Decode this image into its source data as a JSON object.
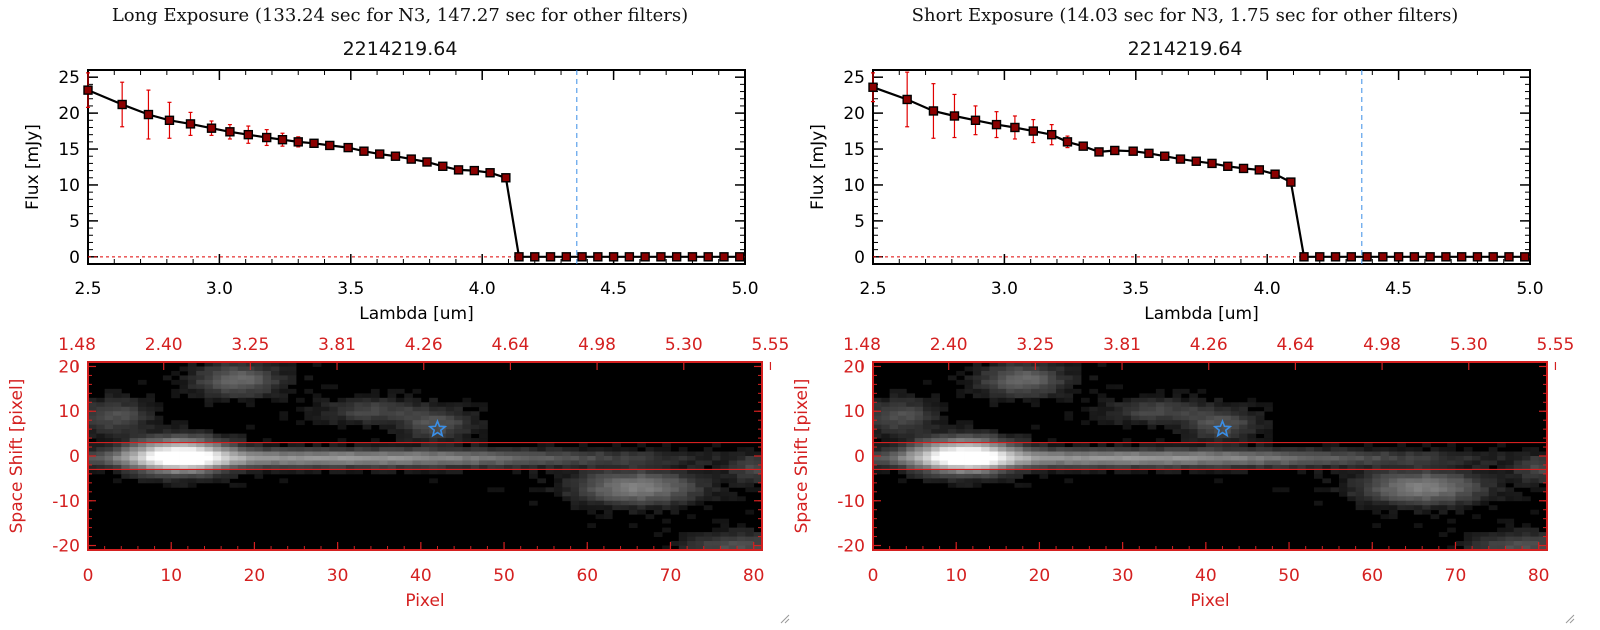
{
  "panels": [
    {
      "exposure_title": "Long Exposure (133.24 sec for N3, 147.27 sec for other filters)",
      "plot_title": "2214219.64"
    },
    {
      "exposure_title": "Short Exposure (14.03 sec for N3, 1.75 sec for other filters)",
      "plot_title": "2214219.64"
    }
  ],
  "colors": {
    "errorbar": "#e00000",
    "marker": "#8b0000",
    "line": "#000000",
    "vline": "#3a8ee6",
    "image_axes": "#d42020",
    "star": "#3a8ee6"
  },
  "chart_data": [
    {
      "type": "line",
      "panel": "long",
      "title": "2214219.64",
      "xlabel": "Lambda [um]",
      "ylabel": "Flux [mJy]",
      "xlim": [
        2.5,
        5.0
      ],
      "ylim": [
        -1,
        26
      ],
      "xticks": [
        "2.5",
        "3.0",
        "3.5",
        "4.0",
        "4.5",
        "5.0"
      ],
      "yticks": [
        "0",
        "5",
        "10",
        "15",
        "20",
        "25"
      ],
      "vline_x": 4.36,
      "x": [
        2.5,
        2.63,
        2.73,
        2.81,
        2.89,
        2.97,
        3.04,
        3.11,
        3.18,
        3.24,
        3.3,
        3.36,
        3.42,
        3.49,
        3.55,
        3.61,
        3.67,
        3.73,
        3.79,
        3.85,
        3.91,
        3.97,
        4.03,
        4.09,
        4.14,
        4.2,
        4.26,
        4.32,
        4.38,
        4.44,
        4.5,
        4.56,
        4.62,
        4.68,
        4.74,
        4.8,
        4.86,
        4.92,
        4.98
      ],
      "y": [
        23.2,
        21.2,
        19.8,
        19.0,
        18.5,
        17.9,
        17.4,
        17.0,
        16.6,
        16.3,
        16.0,
        15.8,
        15.5,
        15.2,
        14.7,
        14.3,
        14.0,
        13.6,
        13.2,
        12.6,
        12.1,
        12.0,
        11.7,
        11.0,
        0,
        0,
        0,
        0,
        0,
        0,
        0,
        0,
        0,
        0,
        0,
        0,
        0,
        0,
        0
      ],
      "yerr": [
        2.4,
        3.1,
        3.4,
        2.5,
        1.6,
        1.0,
        1.0,
        1.2,
        1.1,
        0.9,
        0.7,
        0.5,
        0.4,
        0.3,
        0.3,
        0.3,
        0.3,
        0.3,
        0.3,
        0.3,
        0.2,
        0.2,
        0.2,
        0.2,
        0,
        0,
        0,
        0,
        0,
        0,
        0,
        0,
        0,
        0,
        0,
        0,
        0,
        0,
        0
      ]
    },
    {
      "type": "heatmap",
      "panel": "long",
      "xlabel": "Pixel",
      "ylabel": "Space Shift [pixel]",
      "xlim": [
        0,
        81
      ],
      "ylim": [
        -21,
        21
      ],
      "xticks": [
        "0",
        "10",
        "20",
        "30",
        "40",
        "50",
        "60",
        "70",
        "80"
      ],
      "yticks": [
        "20",
        "10",
        "0",
        "-10",
        "-20"
      ],
      "top_ticks": [
        "1.48",
        "2.40",
        "3.25",
        "3.81",
        "4.26",
        "4.64",
        "4.98",
        "5.30",
        "5.55"
      ],
      "aperture_rows": [
        3,
        -3
      ],
      "star_position": [
        42,
        6
      ],
      "sources": [
        {
          "x": 11,
          "y": 0,
          "sx": 4,
          "sy": 2.5,
          "amp": 1.0
        },
        {
          "x": 30,
          "y": -0.5,
          "sx": 22,
          "sy": 1.3,
          "amp": 0.5
        },
        {
          "x": 18,
          "y": 17,
          "sx": 3.5,
          "sy": 2.5,
          "amp": 0.3
        },
        {
          "x": 3,
          "y": 9,
          "sx": 3,
          "sy": 2.5,
          "amp": 0.22
        },
        {
          "x": 34,
          "y": 10,
          "sx": 4,
          "sy": 2,
          "amp": 0.18
        },
        {
          "x": 42,
          "y": 7,
          "sx": 3,
          "sy": 2.5,
          "amp": 0.22
        },
        {
          "x": 66,
          "y": -7,
          "sx": 5,
          "sy": 2.5,
          "amp": 0.4
        },
        {
          "x": 78,
          "y": -20,
          "sx": 4,
          "sy": 2,
          "amp": 0.22
        },
        {
          "x": 80,
          "y": -3,
          "sx": 2,
          "sy": 2,
          "amp": 0.18
        }
      ]
    },
    {
      "type": "line",
      "panel": "short",
      "title": "2214219.64",
      "xlabel": "Lambda [um]",
      "ylabel": "Flux [mJy]",
      "xlim": [
        2.5,
        5.0
      ],
      "ylim": [
        -1,
        26
      ],
      "xticks": [
        "2.5",
        "3.0",
        "3.5",
        "4.0",
        "4.5",
        "5.0"
      ],
      "yticks": [
        "0",
        "5",
        "10",
        "15",
        "20",
        "25"
      ],
      "vline_x": 4.36,
      "x": [
        2.5,
        2.63,
        2.73,
        2.81,
        2.89,
        2.97,
        3.04,
        3.11,
        3.18,
        3.24,
        3.3,
        3.36,
        3.42,
        3.49,
        3.55,
        3.61,
        3.67,
        3.73,
        3.79,
        3.85,
        3.91,
        3.97,
        4.03,
        4.09,
        4.14,
        4.2,
        4.26,
        4.32,
        4.38,
        4.44,
        4.5,
        4.56,
        4.62,
        4.68,
        4.74,
        4.8,
        4.86,
        4.92,
        4.98
      ],
      "y": [
        23.6,
        21.9,
        20.3,
        19.6,
        19.0,
        18.4,
        18.0,
        17.5,
        17.0,
        16.0,
        15.4,
        14.6,
        14.8,
        14.7,
        14.4,
        14.0,
        13.6,
        13.3,
        13.0,
        12.6,
        12.3,
        12.1,
        11.5,
        10.4,
        0,
        0,
        0,
        0,
        0,
        0,
        0,
        0,
        0,
        0,
        0,
        0,
        0,
        0,
        0
      ],
      "yerr": [
        2.0,
        3.8,
        3.8,
        3.0,
        2.0,
        1.8,
        1.6,
        1.6,
        1.4,
        0.8,
        0.5,
        0.3,
        0.3,
        0.3,
        0.3,
        0.2,
        0.2,
        0.2,
        0.2,
        0.2,
        0.2,
        0.2,
        0.2,
        0.2,
        0,
        0,
        0,
        0,
        0,
        0,
        0,
        0,
        0,
        0,
        0,
        0,
        0,
        0,
        0
      ]
    },
    {
      "type": "heatmap",
      "panel": "short",
      "xlabel": "Pixel",
      "ylabel": "Space Shift [pixel]",
      "xlim": [
        0,
        81
      ],
      "ylim": [
        -21,
        21
      ],
      "xticks": [
        "0",
        "10",
        "20",
        "30",
        "40",
        "50",
        "60",
        "70",
        "80"
      ],
      "yticks": [
        "20",
        "10",
        "0",
        "-10",
        "-20"
      ],
      "top_ticks": [
        "1.48",
        "2.40",
        "3.25",
        "3.81",
        "4.26",
        "4.64",
        "4.98",
        "5.30",
        "5.55"
      ],
      "aperture_rows": [
        3,
        -3
      ],
      "star_position": [
        42,
        6
      ],
      "sources": [
        {
          "x": 11,
          "y": 0,
          "sx": 4,
          "sy": 2.5,
          "amp": 1.0
        },
        {
          "x": 30,
          "y": -0.5,
          "sx": 22,
          "sy": 1.3,
          "amp": 0.5
        },
        {
          "x": 18,
          "y": 17,
          "sx": 3.5,
          "sy": 2.5,
          "amp": 0.3
        },
        {
          "x": 3,
          "y": 9,
          "sx": 3,
          "sy": 2.5,
          "amp": 0.22
        },
        {
          "x": 34,
          "y": 10,
          "sx": 4,
          "sy": 2,
          "amp": 0.18
        },
        {
          "x": 42,
          "y": 7,
          "sx": 3,
          "sy": 2.5,
          "amp": 0.22
        },
        {
          "x": 66,
          "y": -7,
          "sx": 5,
          "sy": 2.5,
          "amp": 0.4
        },
        {
          "x": 78,
          "y": -20,
          "sx": 4,
          "sy": 2,
          "amp": 0.22
        },
        {
          "x": 80,
          "y": -3,
          "sx": 2,
          "sy": 2,
          "amp": 0.18
        }
      ]
    }
  ]
}
